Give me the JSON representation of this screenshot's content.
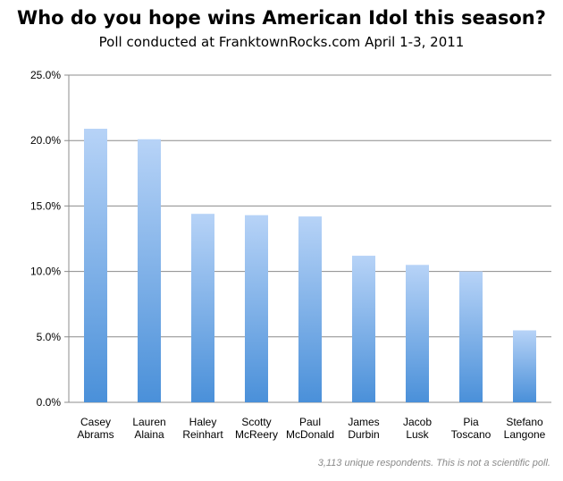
{
  "chart_data": {
    "type": "bar",
    "title": "Who do you hope wins American Idol this season?",
    "subtitle": "Poll conducted at FranktownRocks.com April 1-3, 2011",
    "footnote": "3,113 unique respondents.  This is not a scientific poll.",
    "categories": [
      [
        "Casey",
        "Abrams"
      ],
      [
        "Lauren",
        "Alaina"
      ],
      [
        "Haley",
        "Reinhart"
      ],
      [
        "Scotty",
        "McReery"
      ],
      [
        "Paul",
        "McDonald"
      ],
      [
        "James",
        "Durbin"
      ],
      [
        "Jacob",
        "Lusk"
      ],
      [
        "Pia",
        "Toscano"
      ],
      [
        "Stefano",
        "Langone"
      ]
    ],
    "values": [
      20.9,
      20.1,
      14.4,
      14.3,
      14.2,
      11.2,
      10.5,
      10.0,
      5.5
    ],
    "ylim": [
      0,
      25
    ],
    "yticks": [
      "0.0%",
      "5.0%",
      "10.0%",
      "15.0%",
      "20.0%",
      "25.0%"
    ],
    "ytick_values": [
      0,
      5,
      10,
      15,
      20,
      25
    ],
    "xlabel": "",
    "ylabel": "",
    "grid": true,
    "colors": {
      "bar_top": "#b7d3f7",
      "bar_bottom": "#4a90d9",
      "grid": "#8c8c8c",
      "axis": "#8c8c8c"
    }
  }
}
